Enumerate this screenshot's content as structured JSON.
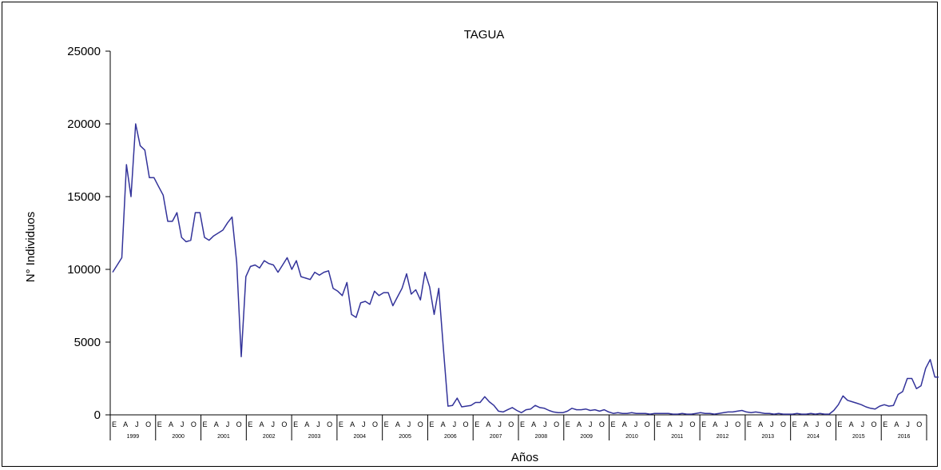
{
  "chart_data": {
    "type": "line",
    "title": "TAGUA",
    "xlabel": "Años",
    "ylabel": "N° Individuos",
    "ylim": [
      0,
      25000
    ],
    "yticks": [
      "0",
      "5000",
      "10000",
      "15000",
      "20000",
      "25000"
    ],
    "month_labels": [
      "E",
      "A",
      "J",
      "O"
    ],
    "years": [
      "1999",
      "2000",
      "2001",
      "2002",
      "2003",
      "2004",
      "2005",
      "2006",
      "2007",
      "2008",
      "2009",
      "2010",
      "2011",
      "2012",
      "2013",
      "2014",
      "2015",
      "2016"
    ],
    "grid": false,
    "line_color": "#33339a",
    "series": [
      {
        "values": [
          9800,
          10300,
          10800,
          17200,
          15000,
          20000,
          18500,
          18200,
          16300,
          16300,
          15700,
          15100,
          13300,
          13300,
          13900,
          12200,
          11900,
          12000,
          13900,
          13900,
          12200,
          12000,
          12300,
          12500,
          12700,
          13200,
          13600,
          10500,
          4000,
          9500,
          10200,
          10300,
          10100,
          10600,
          10400,
          10300,
          9800,
          10300,
          10800,
          10000,
          10600,
          9500,
          9400,
          9300,
          9800,
          9600,
          9800,
          9900,
          8700,
          8500,
          8200,
          9100,
          6900,
          6700,
          7700,
          7800,
          7600,
          8500,
          8200,
          8400,
          8400,
          7500,
          8100,
          8700,
          9700,
          8300,
          8600,
          7900,
          9800,
          8800,
          6900,
          8700,
          4600,
          600,
          650,
          1150,
          550,
          600,
          650,
          850,
          850,
          1250,
          900,
          650,
          250,
          200,
          350,
          500,
          300,
          150,
          350,
          400,
          650,
          500,
          450,
          300,
          200,
          150,
          150,
          250,
          450,
          350,
          350,
          400,
          300,
          350,
          250,
          350,
          200,
          100,
          150,
          100,
          100,
          150,
          100,
          100,
          100,
          50,
          100,
          100,
          100,
          100,
          50,
          50,
          100,
          50,
          50,
          100,
          150,
          100,
          100,
          50,
          100,
          150,
          200,
          200,
          250,
          300,
          200,
          150,
          200,
          150,
          100,
          100,
          50,
          100,
          50,
          50,
          50,
          100,
          50,
          50,
          100,
          50,
          100,
          50,
          50,
          300,
          700,
          1300,
          1000,
          900,
          800,
          700,
          550,
          450,
          400,
          600,
          700,
          600,
          650,
          1400,
          1600,
          2500,
          2500,
          1800,
          2000,
          3200,
          3800,
          2600,
          2600,
          1400,
          1500,
          2500,
          3100,
          3000,
          2600,
          450,
          500,
          400,
          1000,
          900,
          900,
          700,
          500,
          850,
          600,
          800,
          600,
          400,
          150,
          100,
          100,
          50,
          50,
          0
        ]
      }
    ]
  }
}
